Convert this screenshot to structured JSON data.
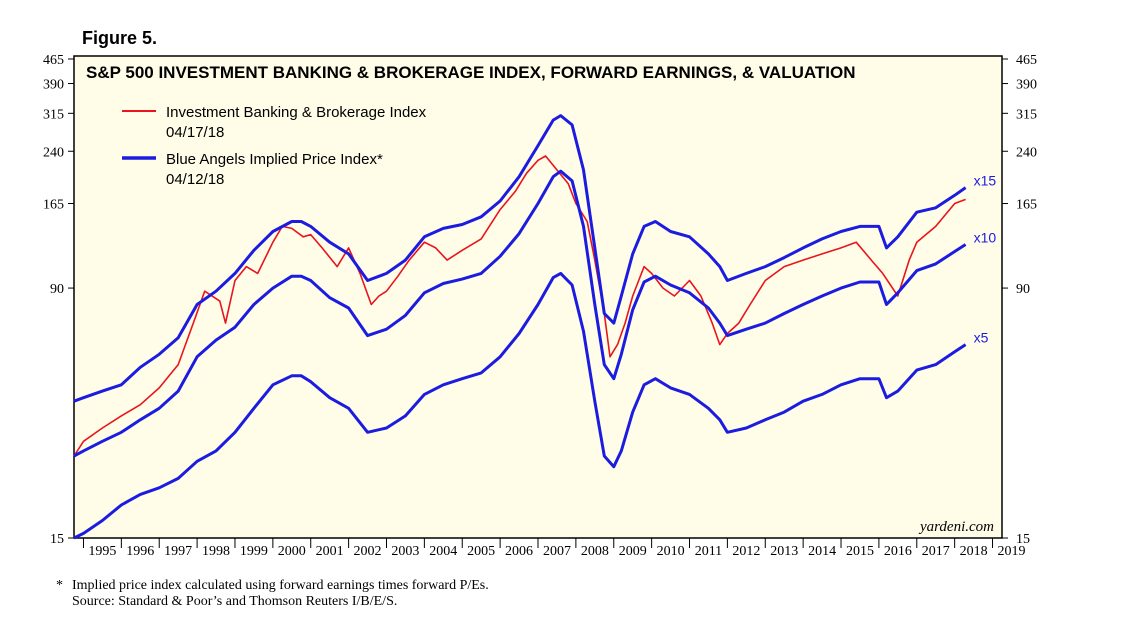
{
  "figure_label": "Figure 5.",
  "footnote": {
    "marker": "*",
    "note": "Implied price index calculated using forward earnings times forward P/Es.",
    "source": "Source: Standard & Poor’s and Thomson Reuters I/B/E/S."
  },
  "colors": {
    "background": "#fffde8",
    "ib_index": "#e8141e",
    "blue_angels": "#1c1ce0"
  },
  "chart_data": {
    "type": "line",
    "title": "S&P 500 INVESTMENT BANKING & BROKERAGE INDEX, FORWARD EARNINGS, & VALUATION",
    "watermark": "yardeni.com",
    "y_scale": "log",
    "ylim": [
      15,
      465
    ],
    "xlim": [
      1994.75,
      2019.25
    ],
    "yticks": [
      15,
      90,
      165,
      240,
      315,
      390,
      465
    ],
    "ytick_labels": [
      "15",
      "90",
      "165",
      "240",
      "315",
      "390",
      "465"
    ],
    "xtick_labels": [
      "1995",
      "1996",
      "1997",
      "1998",
      "1999",
      "2000",
      "2001",
      "2002",
      "2003",
      "2004",
      "2005",
      "2006",
      "2007",
      "2008",
      "2009",
      "2010",
      "2011",
      "2012",
      "2013",
      "2014",
      "2015",
      "2016",
      "2017",
      "2018",
      "2019"
    ],
    "grid": false,
    "legend_position": "top-left",
    "series": [
      {
        "name": "Investment Banking & Brokerage Index",
        "date": "04/17/18",
        "x": [
          1994.75,
          1995.0,
          1995.5,
          1996.0,
          1996.5,
          1997.0,
          1997.5,
          1997.9,
          1998.2,
          1998.6,
          1998.75,
          1999.0,
          1999.3,
          1999.6,
          2000.0,
          2000.25,
          2000.5,
          2000.8,
          2001.0,
          2001.3,
          2001.7,
          2002.0,
          2002.3,
          2002.6,
          2002.8,
          2003.0,
          2003.3,
          2003.6,
          2004.0,
          2004.3,
          2004.6,
          2005.0,
          2005.5,
          2006.0,
          2006.4,
          2006.7,
          2007.0,
          2007.2,
          2007.5,
          2007.8,
          2008.0,
          2008.3,
          2008.5,
          2008.75,
          2008.9,
          2009.1,
          2009.3,
          2009.5,
          2009.8,
          2010.0,
          2010.3,
          2010.6,
          2011.0,
          2011.3,
          2011.6,
          2011.8,
          2012.0,
          2012.3,
          2012.6,
          2013.0,
          2013.5,
          2014.0,
          2014.5,
          2015.0,
          2015.4,
          2015.8,
          2016.1,
          2016.5,
          2016.8,
          2017.0,
          2017.5,
          2018.0,
          2018.29
        ],
        "y": [
          27,
          30,
          33,
          36,
          39,
          44,
          52,
          70,
          88,
          82,
          70,
          95,
          105,
          100,
          125,
          140,
          138,
          130,
          132,
          120,
          105,
          120,
          100,
          80,
          85,
          88,
          98,
          110,
          125,
          120,
          110,
          118,
          128,
          158,
          180,
          205,
          225,
          232,
          210,
          190,
          165,
          145,
          110,
          75,
          55,
          60,
          70,
          85,
          105,
          100,
          90,
          85,
          95,
          85,
          70,
          60,
          65,
          70,
          80,
          95,
          105,
          110,
          115,
          120,
          125,
          110,
          100,
          85,
          110,
          125,
          140,
          165,
          170
        ]
      },
      {
        "name": "Blue Angels Implied Price Index*",
        "date": "04/12/18",
        "label": "x15",
        "x": [
          1994.75,
          1995.0,
          1995.5,
          1996.0,
          1996.5,
          1997.0,
          1997.5,
          1998.0,
          1998.5,
          1999.0,
          1999.5,
          2000.0,
          2000.5,
          2000.75,
          2001.0,
          2001.5,
          2002.0,
          2002.5,
          2003.0,
          2003.5,
          2004.0,
          2004.5,
          2005.0,
          2005.5,
          2006.0,
          2006.5,
          2007.0,
          2007.4,
          2007.6,
          2007.9,
          2008.2,
          2008.5,
          2008.75,
          2009.0,
          2009.2,
          2009.5,
          2009.8,
          2010.1,
          2010.5,
          2011.0,
          2011.5,
          2011.8,
          2012.0,
          2012.5,
          2013.0,
          2013.5,
          2014.0,
          2014.5,
          2015.0,
          2015.5,
          2016.0,
          2016.2,
          2016.5,
          2017.0,
          2017.5,
          2018.0,
          2018.29
        ],
        "y": [
          40,
          41,
          43,
          45,
          51,
          56,
          63,
          80,
          88,
          100,
          118,
          135,
          145,
          145,
          140,
          125,
          115,
          95,
          100,
          110,
          130,
          138,
          142,
          150,
          168,
          200,
          250,
          300,
          310,
          290,
          210,
          120,
          75,
          70,
          85,
          115,
          140,
          145,
          135,
          130,
          115,
          105,
          95,
          100,
          105,
          112,
          120,
          128,
          135,
          140,
          140,
          120,
          130,
          155,
          160,
          175,
          185
        ]
      },
      {
        "name": "",
        "label": "x10",
        "x": [
          1994.75,
          1995.0,
          1995.5,
          1996.0,
          1996.5,
          1997.0,
          1997.5,
          1998.0,
          1998.5,
          1999.0,
          1999.5,
          2000.0,
          2000.5,
          2000.75,
          2001.0,
          2001.5,
          2002.0,
          2002.5,
          2003.0,
          2003.5,
          2004.0,
          2004.5,
          2005.0,
          2005.5,
          2006.0,
          2006.5,
          2007.0,
          2007.4,
          2007.6,
          2007.9,
          2008.2,
          2008.5,
          2008.75,
          2009.0,
          2009.2,
          2009.5,
          2009.8,
          2010.1,
          2010.5,
          2011.0,
          2011.5,
          2011.8,
          2012.0,
          2012.5,
          2013.0,
          2013.5,
          2014.0,
          2014.5,
          2015.0,
          2015.5,
          2016.0,
          2016.2,
          2016.5,
          2017.0,
          2017.5,
          2018.0,
          2018.29
        ],
        "y": [
          27,
          28,
          30,
          32,
          35,
          38,
          43,
          55,
          62,
          68,
          80,
          90,
          98,
          98,
          95,
          84,
          78,
          64,
          67,
          74,
          87,
          93,
          96,
          100,
          113,
          133,
          165,
          200,
          208,
          194,
          140,
          80,
          52,
          47,
          56,
          77,
          94,
          98,
          92,
          87,
          78,
          70,
          64,
          67,
          70,
          75,
          80,
          85,
          90,
          94,
          94,
          80,
          87,
          102,
          107,
          117,
          123
        ]
      },
      {
        "name": "",
        "label": "x5",
        "x": [
          1994.75,
          1995.0,
          1995.5,
          1996.0,
          1996.5,
          1997.0,
          1997.5,
          1998.0,
          1998.5,
          1999.0,
          1999.5,
          2000.0,
          2000.5,
          2000.75,
          2001.0,
          2001.5,
          2002.0,
          2002.5,
          2003.0,
          2003.5,
          2004.0,
          2004.5,
          2005.0,
          2005.5,
          2006.0,
          2006.5,
          2007.0,
          2007.4,
          2007.6,
          2007.9,
          2008.2,
          2008.5,
          2008.75,
          2009.0,
          2009.2,
          2009.5,
          2009.8,
          2010.1,
          2010.5,
          2011.0,
          2011.5,
          2011.8,
          2012.0,
          2012.5,
          2013.0,
          2013.5,
          2014.0,
          2014.5,
          2015.0,
          2015.5,
          2016.0,
          2016.2,
          2016.5,
          2017.0,
          2017.5,
          2018.0,
          2018.29
        ],
        "y": [
          15,
          15.5,
          17,
          19,
          20.5,
          21.5,
          23,
          26,
          28,
          32,
          38,
          45,
          48,
          48,
          46,
          41,
          38,
          32,
          33,
          36,
          42,
          45,
          47,
          49,
          55,
          65,
          80,
          97,
          100,
          92,
          66,
          40,
          27,
          25,
          28,
          37,
          45,
          47,
          44,
          42,
          38,
          35,
          32,
          33,
          35,
          37,
          40,
          42,
          45,
          47,
          47,
          41,
          43,
          50,
          52,
          57,
          60
        ]
      }
    ]
  }
}
